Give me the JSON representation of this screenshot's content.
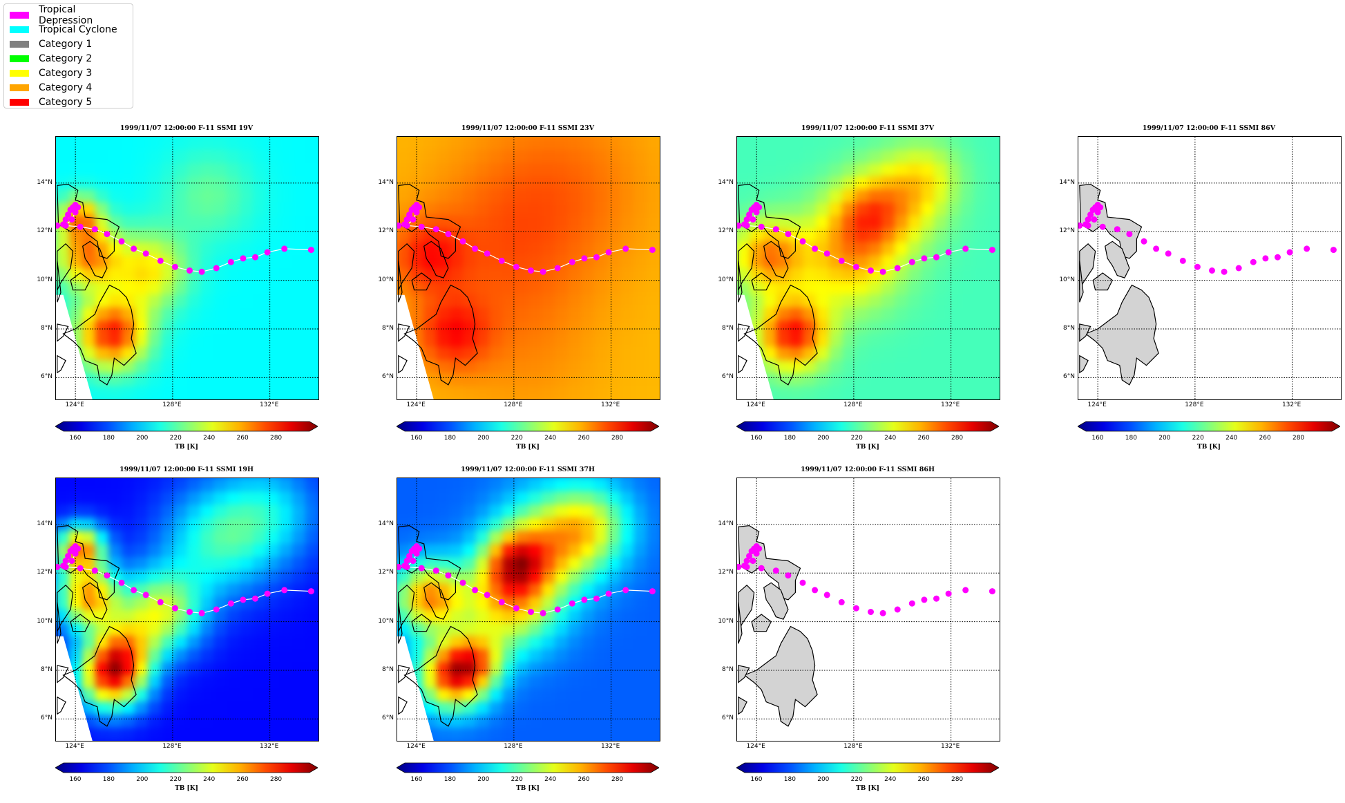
{
  "legend": {
    "entries": [
      {
        "label": "Tropical Depression",
        "color": "#ff00ff"
      },
      {
        "label": "Tropical Cyclone",
        "color": "#00ffff"
      },
      {
        "label": "Category 1",
        "color": "#808080"
      },
      {
        "label": "Category 2",
        "color": "#00ff00"
      },
      {
        "label": "Category 3",
        "color": "#ffff00"
      },
      {
        "label": "Category 4",
        "color": "#ffa500"
      },
      {
        "label": "Category 5",
        "color": "#ff0000"
      }
    ]
  },
  "chart_data": [
    {
      "type": "heatmap",
      "title": "1999/11/07 12:00:00  F-11 SSMI 19V",
      "field": "19V",
      "colorbar_label": "TB [K]",
      "has_data": true
    },
    {
      "type": "heatmap",
      "title": "1999/11/07 12:00:00  F-11 SSMI 23V",
      "field": "23V",
      "colorbar_label": "TB [K]",
      "has_data": true
    },
    {
      "type": "heatmap",
      "title": "1999/11/07 12:00:00  F-11 SSMI 37V",
      "field": "37V",
      "colorbar_label": "TB [K]",
      "has_data": true
    },
    {
      "type": "heatmap",
      "title": "1999/11/07 12:00:00  F-11 SSMI 86V",
      "field": "86V",
      "colorbar_label": "TB [K]",
      "has_data": false
    },
    {
      "type": "heatmap",
      "title": "1999/11/07 12:00:00  F-11 SSMI 19H",
      "field": "19H",
      "colorbar_label": "TB [K]",
      "has_data": true
    },
    {
      "type": "heatmap",
      "title": "1999/11/07 12:00:00  F-11 SSMI 37H",
      "field": "37H",
      "colorbar_label": "TB [K]",
      "has_data": true
    },
    {
      "type": "heatmap",
      "title": "1999/11/07 12:00:00  F-11 SSMI 86H",
      "field": "86H",
      "colorbar_label": "TB [K]",
      "has_data": false
    }
  ],
  "axes": {
    "lon_ticks": [
      "124°E",
      "128°E",
      "132°E"
    ],
    "lon_values": [
      124,
      128,
      132
    ],
    "lat_ticks": [
      "6°N",
      "8°N",
      "10°N",
      "12°N",
      "14°N"
    ],
    "lat_values": [
      6,
      8,
      10,
      12,
      14
    ],
    "lon_range": [
      123.2,
      134.0
    ],
    "lat_range": [
      5.1,
      15.9
    ]
  },
  "colorbar": {
    "ticks": [
      "160",
      "180",
      "200",
      "220",
      "240",
      "260",
      "280"
    ],
    "tick_values": [
      160,
      180,
      200,
      220,
      240,
      260,
      280
    ],
    "range": [
      153,
      300
    ],
    "colormap": "jet"
  },
  "track": {
    "category": "Tropical Depression",
    "color": "#ff00ff",
    "points": [
      [
        123.25,
        12.25
      ],
      [
        123.5,
        12.3
      ],
      [
        123.6,
        12.5
      ],
      [
        123.7,
        12.7
      ],
      [
        123.8,
        12.9
      ],
      [
        123.9,
        13.0
      ],
      [
        124.0,
        13.1
      ],
      [
        124.1,
        13.0
      ],
      [
        124.0,
        12.8
      ],
      [
        123.85,
        12.5
      ],
      [
        123.6,
        12.25
      ],
      [
        124.2,
        12.2
      ],
      [
        124.8,
        12.1
      ],
      [
        125.3,
        11.9
      ],
      [
        125.9,
        11.6
      ],
      [
        126.4,
        11.3
      ],
      [
        126.9,
        11.1
      ],
      [
        127.5,
        10.8
      ],
      [
        128.1,
        10.55
      ],
      [
        128.7,
        10.4
      ],
      [
        129.2,
        10.35
      ],
      [
        129.8,
        10.5
      ],
      [
        130.4,
        10.75
      ],
      [
        130.9,
        10.9
      ],
      [
        131.4,
        10.95
      ],
      [
        131.9,
        11.15
      ],
      [
        132.6,
        11.3
      ],
      [
        133.7,
        11.25
      ]
    ]
  }
}
